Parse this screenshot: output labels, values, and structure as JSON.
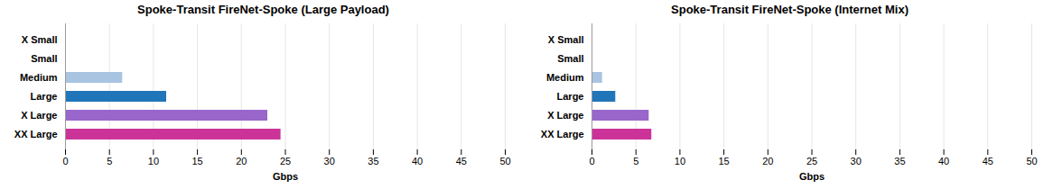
{
  "chart_data": [
    {
      "type": "bar",
      "orientation": "horizontal",
      "title": "Spoke-Transit FireNet-Spoke (Large Payload)",
      "categories": [
        "X Small",
        "Small",
        "Medium",
        "Large",
        "X Large",
        "XX Large"
      ],
      "values": [
        0.05,
        0.05,
        6.5,
        11.5,
        23.0,
        24.5
      ],
      "colors": [
        "#bbbbbb",
        "#bbbbbb",
        "#a8c4e0",
        "#2076b8",
        "#9966cc",
        "#cc3399"
      ],
      "xlabel": "Gbps",
      "xlim": [
        0,
        50
      ],
      "xticks": [
        0,
        5,
        10,
        15,
        20,
        25,
        30,
        35,
        40,
        45,
        50
      ],
      "grid": true
    },
    {
      "type": "bar",
      "orientation": "horizontal",
      "title": "Spoke-Transit FireNet-Spoke (Internet Mix)",
      "categories": [
        "X Small",
        "Small",
        "Medium",
        "Large",
        "X Large",
        "XX Large"
      ],
      "values": [
        0.05,
        0.05,
        1.2,
        2.7,
        6.5,
        6.8
      ],
      "colors": [
        "#bbbbbb",
        "#bbbbbb",
        "#a8c4e0",
        "#2076b8",
        "#9966cc",
        "#cc3399"
      ],
      "xlabel": "Gbps",
      "xlim": [
        0,
        50
      ],
      "xticks": [
        0,
        5,
        10,
        15,
        20,
        25,
        30,
        35,
        40,
        45,
        50
      ],
      "grid": true
    }
  ]
}
